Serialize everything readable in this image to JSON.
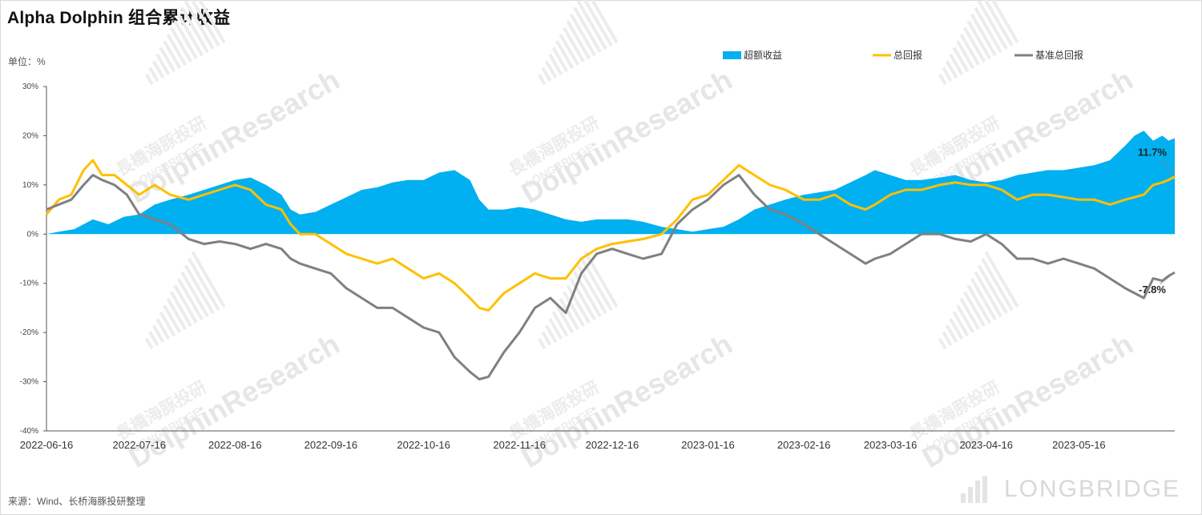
{
  "title": "Alpha Dolphin 组合累计收益",
  "unit_label": "单位：%",
  "source": "来源：Wind、长桥海豚投研整理",
  "brand": "LONGBRIDGE",
  "watermark": {
    "name": "DolphinResearch",
    "sub": "長橋海豚投研",
    "sub2": "LONGBRIDGE"
  },
  "colors": {
    "excess": "#00B0F0",
    "total": "#FFC000",
    "benchmark": "#808080"
  },
  "chart_data": {
    "type": "line",
    "ylim": [
      -40,
      30
    ],
    "y_ticks": [
      "30%",
      "20%",
      "10%",
      "0%",
      "-10%",
      "-20%",
      "-30%",
      "-40%"
    ],
    "x_ticks": [
      "2022-06-16",
      "2022-07-16",
      "2022-08-16",
      "2022-09-16",
      "2022-10-16",
      "2022-11-16",
      "2022-12-16",
      "2023-01-16",
      "2023-02-16",
      "2023-03-16",
      "2023-04-16",
      "2023-05-16"
    ],
    "x_start": "2022-06-16",
    "x_end": "2023-06-16",
    "legend": [
      {
        "name": "超额收益",
        "style": "area",
        "color": "#00B0F0"
      },
      {
        "name": "总回报",
        "style": "line",
        "color": "#FFC000"
      },
      {
        "name": "基准总回报",
        "style": "line",
        "color": "#808080"
      }
    ],
    "series": [
      {
        "name": "超额收益",
        "kind": "area",
        "points": [
          [
            "2022-06-16",
            0
          ],
          [
            "2022-06-20",
            0.5
          ],
          [
            "2022-06-25",
            1
          ],
          [
            "2022-07-01",
            3
          ],
          [
            "2022-07-06",
            2
          ],
          [
            "2022-07-11",
            3.5
          ],
          [
            "2022-07-16",
            4
          ],
          [
            "2022-07-21",
            6
          ],
          [
            "2022-07-26",
            7
          ],
          [
            "2022-08-01",
            8
          ],
          [
            "2022-08-06",
            9
          ],
          [
            "2022-08-11",
            10
          ],
          [
            "2022-08-16",
            11
          ],
          [
            "2022-08-21",
            11.5
          ],
          [
            "2022-08-26",
            10
          ],
          [
            "2022-08-31",
            8
          ],
          [
            "2022-09-03",
            5
          ],
          [
            "2022-09-06",
            4
          ],
          [
            "2022-09-11",
            4.5
          ],
          [
            "2022-09-16",
            6
          ],
          [
            "2022-09-21",
            7.5
          ],
          [
            "2022-09-26",
            9
          ],
          [
            "2022-10-01",
            9.5
          ],
          [
            "2022-10-06",
            10.5
          ],
          [
            "2022-10-11",
            11
          ],
          [
            "2022-10-16",
            11
          ],
          [
            "2022-10-21",
            12.5
          ],
          [
            "2022-10-26",
            13
          ],
          [
            "2022-10-31",
            11
          ],
          [
            "2022-11-03",
            7
          ],
          [
            "2022-11-06",
            5
          ],
          [
            "2022-11-11",
            5
          ],
          [
            "2022-11-16",
            5.5
          ],
          [
            "2022-11-21",
            5
          ],
          [
            "2022-11-26",
            4
          ],
          [
            "2022-12-01",
            3
          ],
          [
            "2022-12-06",
            2.5
          ],
          [
            "2022-12-11",
            3
          ],
          [
            "2022-12-16",
            3
          ],
          [
            "2022-12-21",
            3
          ],
          [
            "2022-12-26",
            2.5
          ],
          [
            "2023-01-01",
            1.5
          ],
          [
            "2023-01-06",
            1
          ],
          [
            "2023-01-11",
            0.5
          ],
          [
            "2023-01-16",
            1
          ],
          [
            "2023-01-21",
            1.5
          ],
          [
            "2023-01-26",
            3
          ],
          [
            "2023-01-31",
            5
          ],
          [
            "2023-02-05",
            6
          ],
          [
            "2023-02-10",
            7
          ],
          [
            "2023-02-16",
            8
          ],
          [
            "2023-02-21",
            8.5
          ],
          [
            "2023-02-26",
            9
          ],
          [
            "2023-03-03",
            10.5
          ],
          [
            "2023-03-08",
            12
          ],
          [
            "2023-03-11",
            13
          ],
          [
            "2023-03-16",
            12
          ],
          [
            "2023-03-21",
            11
          ],
          [
            "2023-03-26",
            11
          ],
          [
            "2023-04-01",
            11.5
          ],
          [
            "2023-04-06",
            12
          ],
          [
            "2023-04-11",
            11
          ],
          [
            "2023-04-16",
            10.5
          ],
          [
            "2023-04-21",
            11
          ],
          [
            "2023-04-26",
            12
          ],
          [
            "2023-05-01",
            12.5
          ],
          [
            "2023-05-06",
            13
          ],
          [
            "2023-05-11",
            13
          ],
          [
            "2023-05-16",
            13.5
          ],
          [
            "2023-05-21",
            14
          ],
          [
            "2023-05-26",
            15
          ],
          [
            "2023-05-31",
            18
          ],
          [
            "2023-06-03",
            20
          ],
          [
            "2023-06-06",
            21
          ],
          [
            "2023-06-09",
            19
          ],
          [
            "2023-06-12",
            20
          ],
          [
            "2023-06-14",
            19
          ],
          [
            "2023-06-16",
            19.5
          ]
        ]
      },
      {
        "name": "总回报",
        "kind": "line",
        "points": [
          [
            "2022-06-16",
            4
          ],
          [
            "2022-06-20",
            7
          ],
          [
            "2022-06-24",
            8
          ],
          [
            "2022-06-28",
            13
          ],
          [
            "2022-07-01",
            15
          ],
          [
            "2022-07-04",
            12
          ],
          [
            "2022-07-08",
            12
          ],
          [
            "2022-07-12",
            10
          ],
          [
            "2022-07-16",
            8
          ],
          [
            "2022-07-21",
            10
          ],
          [
            "2022-07-26",
            8
          ],
          [
            "2022-08-01",
            7
          ],
          [
            "2022-08-06",
            8
          ],
          [
            "2022-08-11",
            9
          ],
          [
            "2022-08-16",
            10
          ],
          [
            "2022-08-21",
            9
          ],
          [
            "2022-08-26",
            6
          ],
          [
            "2022-08-31",
            5
          ],
          [
            "2022-09-03",
            2
          ],
          [
            "2022-09-06",
            0
          ],
          [
            "2022-09-11",
            0
          ],
          [
            "2022-09-16",
            -2
          ],
          [
            "2022-09-21",
            -4
          ],
          [
            "2022-09-26",
            -5
          ],
          [
            "2022-10-01",
            -6
          ],
          [
            "2022-10-06",
            -5
          ],
          [
            "2022-10-11",
            -7
          ],
          [
            "2022-10-16",
            -9
          ],
          [
            "2022-10-21",
            -8
          ],
          [
            "2022-10-26",
            -10
          ],
          [
            "2022-10-31",
            -13
          ],
          [
            "2022-11-03",
            -15
          ],
          [
            "2022-11-06",
            -15.5
          ],
          [
            "2022-11-11",
            -12
          ],
          [
            "2022-11-16",
            -10
          ],
          [
            "2022-11-21",
            -8
          ],
          [
            "2022-11-26",
            -9
          ],
          [
            "2022-12-01",
            -9
          ],
          [
            "2022-12-06",
            -5
          ],
          [
            "2022-12-11",
            -3
          ],
          [
            "2022-12-16",
            -2
          ],
          [
            "2022-12-21",
            -1.5
          ],
          [
            "2022-12-26",
            -1
          ],
          [
            "2023-01-01",
            0
          ],
          [
            "2023-01-06",
            3
          ],
          [
            "2023-01-11",
            7
          ],
          [
            "2023-01-16",
            8
          ],
          [
            "2023-01-21",
            11
          ],
          [
            "2023-01-26",
            14
          ],
          [
            "2023-01-31",
            12
          ],
          [
            "2023-02-05",
            10
          ],
          [
            "2023-02-10",
            9
          ],
          [
            "2023-02-16",
            7
          ],
          [
            "2023-02-21",
            7
          ],
          [
            "2023-02-26",
            8
          ],
          [
            "2023-03-03",
            6
          ],
          [
            "2023-03-08",
            5
          ],
          [
            "2023-03-11",
            6
          ],
          [
            "2023-03-16",
            8
          ],
          [
            "2023-03-21",
            9
          ],
          [
            "2023-03-26",
            9
          ],
          [
            "2023-04-01",
            10
          ],
          [
            "2023-04-06",
            10.5
          ],
          [
            "2023-04-11",
            10
          ],
          [
            "2023-04-16",
            10
          ],
          [
            "2023-04-21",
            9
          ],
          [
            "2023-04-26",
            7
          ],
          [
            "2023-05-01",
            8
          ],
          [
            "2023-05-06",
            8
          ],
          [
            "2023-05-11",
            7.5
          ],
          [
            "2023-05-16",
            7
          ],
          [
            "2023-05-21",
            7
          ],
          [
            "2023-05-26",
            6
          ],
          [
            "2023-05-31",
            7
          ],
          [
            "2023-06-03",
            7.5
          ],
          [
            "2023-06-06",
            8
          ],
          [
            "2023-06-09",
            10
          ],
          [
            "2023-06-12",
            10.5
          ],
          [
            "2023-06-14",
            11
          ],
          [
            "2023-06-16",
            11.7
          ]
        ]
      },
      {
        "name": "基准总回报",
        "kind": "line",
        "points": [
          [
            "2022-06-16",
            5
          ],
          [
            "2022-06-20",
            6
          ],
          [
            "2022-06-24",
            7
          ],
          [
            "2022-06-28",
            10
          ],
          [
            "2022-07-01",
            12
          ],
          [
            "2022-07-04",
            11
          ],
          [
            "2022-07-08",
            10
          ],
          [
            "2022-07-12",
            8
          ],
          [
            "2022-07-16",
            4
          ],
          [
            "2022-07-21",
            3
          ],
          [
            "2022-07-26",
            2
          ],
          [
            "2022-08-01",
            -1
          ],
          [
            "2022-08-06",
            -2
          ],
          [
            "2022-08-11",
            -1.5
          ],
          [
            "2022-08-16",
            -2
          ],
          [
            "2022-08-21",
            -3
          ],
          [
            "2022-08-26",
            -2
          ],
          [
            "2022-08-31",
            -3
          ],
          [
            "2022-09-03",
            -5
          ],
          [
            "2022-09-06",
            -6
          ],
          [
            "2022-09-11",
            -7
          ],
          [
            "2022-09-16",
            -8
          ],
          [
            "2022-09-21",
            -11
          ],
          [
            "2022-09-26",
            -13
          ],
          [
            "2022-10-01",
            -15
          ],
          [
            "2022-10-06",
            -15
          ],
          [
            "2022-10-11",
            -17
          ],
          [
            "2022-10-16",
            -19
          ],
          [
            "2022-10-21",
            -20
          ],
          [
            "2022-10-26",
            -25
          ],
          [
            "2022-10-31",
            -28
          ],
          [
            "2022-11-03",
            -29.5
          ],
          [
            "2022-11-06",
            -29
          ],
          [
            "2022-11-11",
            -24
          ],
          [
            "2022-11-16",
            -20
          ],
          [
            "2022-11-21",
            -15
          ],
          [
            "2022-11-26",
            -13
          ],
          [
            "2022-12-01",
            -16
          ],
          [
            "2022-12-06",
            -8
          ],
          [
            "2022-12-11",
            -4
          ],
          [
            "2022-12-16",
            -3
          ],
          [
            "2022-12-21",
            -4
          ],
          [
            "2022-12-26",
            -5
          ],
          [
            "2023-01-01",
            -4
          ],
          [
            "2023-01-06",
            2
          ],
          [
            "2023-01-11",
            5
          ],
          [
            "2023-01-16",
            7
          ],
          [
            "2023-01-21",
            10
          ],
          [
            "2023-01-26",
            12
          ],
          [
            "2023-01-31",
            8
          ],
          [
            "2023-02-05",
            5
          ],
          [
            "2023-02-10",
            4
          ],
          [
            "2023-02-16",
            2
          ],
          [
            "2023-02-21",
            0
          ],
          [
            "2023-02-26",
            -2
          ],
          [
            "2023-03-03",
            -4
          ],
          [
            "2023-03-08",
            -6
          ],
          [
            "2023-03-11",
            -5
          ],
          [
            "2023-03-16",
            -4
          ],
          [
            "2023-03-21",
            -2
          ],
          [
            "2023-03-26",
            0
          ],
          [
            "2023-04-01",
            0
          ],
          [
            "2023-04-06",
            -1
          ],
          [
            "2023-04-11",
            -1.5
          ],
          [
            "2023-04-16",
            0
          ],
          [
            "2023-04-21",
            -2
          ],
          [
            "2023-04-26",
            -5
          ],
          [
            "2023-05-01",
            -5
          ],
          [
            "2023-05-06",
            -6
          ],
          [
            "2023-05-11",
            -5
          ],
          [
            "2023-05-16",
            -6
          ],
          [
            "2023-05-21",
            -7
          ],
          [
            "2023-05-26",
            -9
          ],
          [
            "2023-05-31",
            -11
          ],
          [
            "2023-06-03",
            -12
          ],
          [
            "2023-06-06",
            -13
          ],
          [
            "2023-06-09",
            -9
          ],
          [
            "2023-06-12",
            -9.5
          ],
          [
            "2023-06-14",
            -8.5
          ],
          [
            "2023-06-16",
            -7.8
          ]
        ]
      }
    ],
    "annotations": [
      {
        "text": "11.7%",
        "series": "总回报",
        "x": "2023-06-16",
        "y": 11.7
      },
      {
        "text": "-7.8%",
        "series": "基准总回报",
        "x": "2023-06-16",
        "y": -7.8
      }
    ]
  }
}
